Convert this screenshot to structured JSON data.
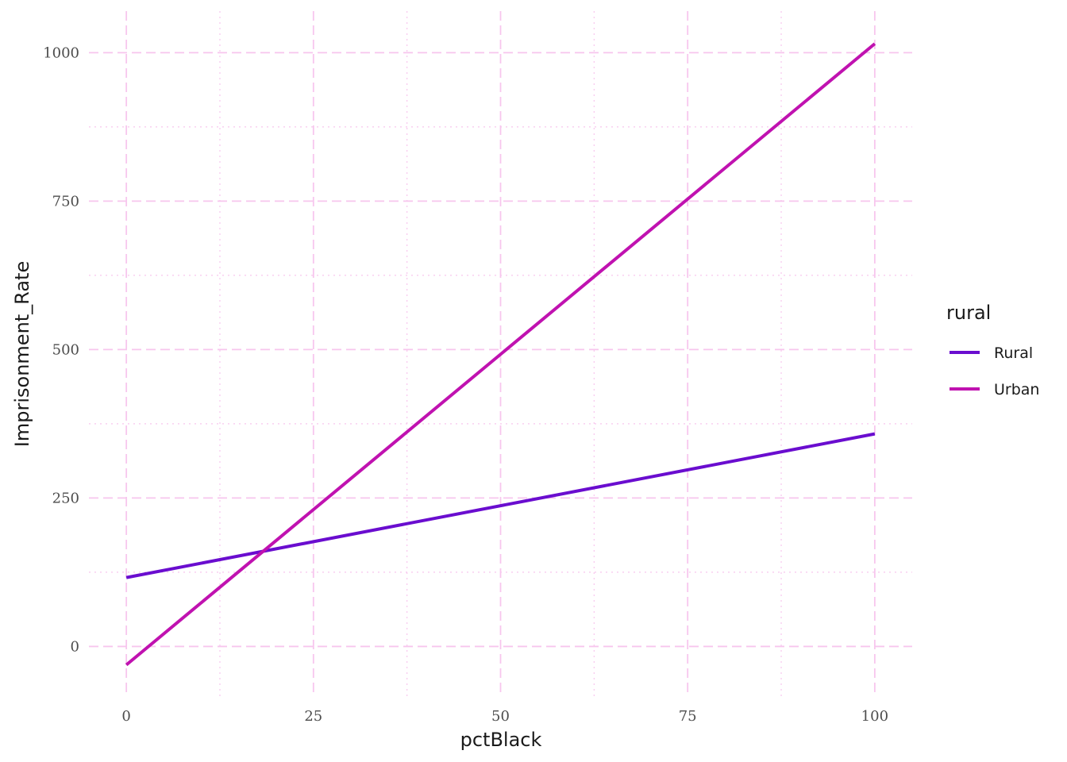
{
  "chart_data": {
    "type": "line",
    "xlabel": "pctBlack",
    "ylabel": "Imprisonment_Rate",
    "xlim": [
      -5,
      105
    ],
    "ylim": [
      -85,
      1070
    ],
    "x_ticks": [
      0,
      25,
      50,
      75,
      100
    ],
    "y_ticks": [
      0,
      250,
      500,
      750,
      1000
    ],
    "x_tick_labels": [
      "0",
      "25",
      "50",
      "75",
      "100"
    ],
    "y_tick_labels": [
      "0",
      "250",
      "500",
      "750",
      "1000"
    ],
    "x_minor_ticks": [
      12.5,
      37.5,
      62.5,
      87.5
    ],
    "y_minor_ticks": [
      125,
      375,
      625,
      875
    ],
    "grid": true,
    "legend": {
      "title": "rural",
      "placement": "right"
    },
    "series": [
      {
        "name": "Rural",
        "color": "#6a0dcf",
        "x": [
          0,
          100
        ],
        "y": [
          116,
          358
        ]
      },
      {
        "name": "Urban",
        "color": "#c012b0",
        "x": [
          0,
          100
        ],
        "y": [
          -31,
          1015
        ]
      }
    ],
    "grid_color": "#f7c6ee"
  }
}
